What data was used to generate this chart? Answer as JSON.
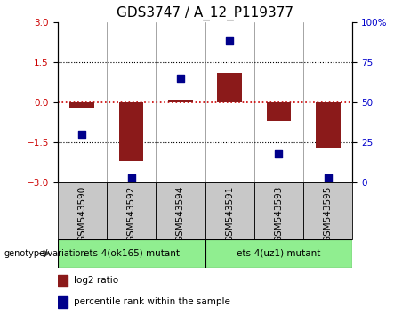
{
  "title": "GDS3747 / A_12_P119377",
  "samples": [
    "GSM543590",
    "GSM543592",
    "GSM543594",
    "GSM543591",
    "GSM543593",
    "GSM543595"
  ],
  "log2_ratio": [
    -0.2,
    -2.2,
    0.1,
    1.1,
    -0.7,
    -1.7
  ],
  "percentile_rank": [
    30,
    3,
    65,
    88,
    18,
    3
  ],
  "ylim_left": [
    -3,
    3
  ],
  "ylim_right": [
    0,
    100
  ],
  "yticks_left": [
    -3,
    -1.5,
    0,
    1.5,
    3
  ],
  "yticks_right": [
    0,
    25,
    50,
    75,
    100
  ],
  "bar_color": "#8B1A1A",
  "dot_color": "#00008B",
  "hline_color": "#CC0000",
  "group1_label": "ets-4(ok165) mutant",
  "group2_label": "ets-4(uz1) mutant",
  "sample_box_color": "#c8c8c8",
  "group1_color": "#90EE90",
  "group2_color": "#90EE90",
  "group_label_prefix": "genotype/variation",
  "legend_log2": "log2 ratio",
  "legend_pct": "percentile rank within the sample",
  "title_fontsize": 11,
  "tick_fontsize": 7.5,
  "bar_width": 0.5,
  "dot_size": 28
}
